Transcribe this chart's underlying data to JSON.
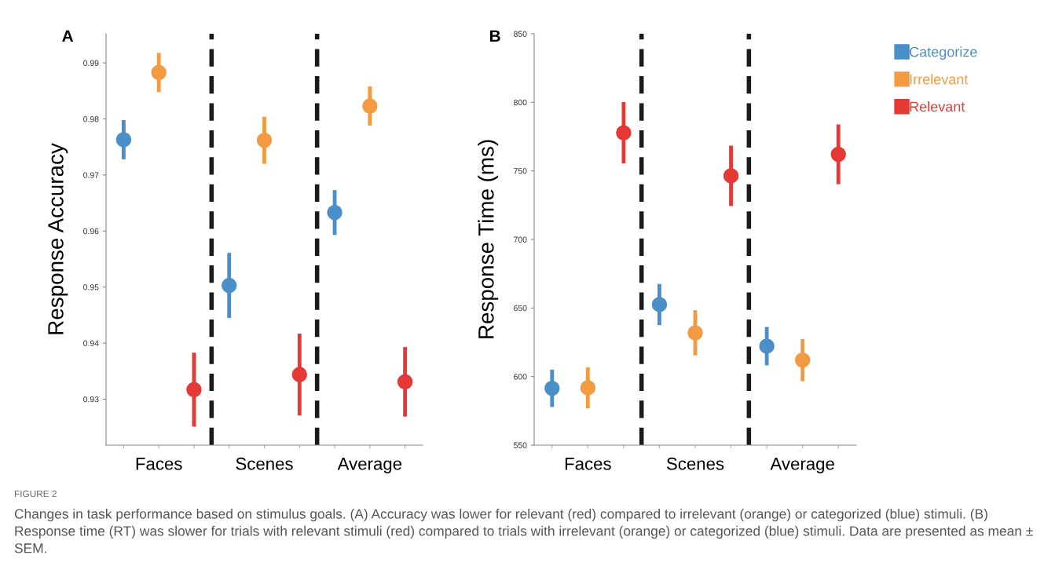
{
  "chart_data": [
    {
      "type": "scatter",
      "title": "A",
      "ylabel": "Response Accuracy",
      "categories": [
        null,
        "Faces",
        null,
        null,
        "Scenes",
        null,
        null,
        "Average",
        null
      ],
      "ylim": [
        0.9218,
        0.9952
      ],
      "yticks": [
        0.93,
        0.94,
        0.95,
        0.96,
        0.97,
        0.98,
        0.99
      ],
      "marker": "circle",
      "grid": false,
      "legend": false,
      "series": [
        {
          "color": "#4b8fc8",
          "values": [
            0.9763,
            null,
            null,
            0.9503,
            null,
            null,
            0.9633,
            null,
            null
          ],
          "errors": [
            0.0035,
            null,
            null,
            0.0058,
            null,
            null,
            0.004,
            null,
            null
          ]
        },
        {
          "color": "#f39a42",
          "values": [
            null,
            0.9883,
            null,
            null,
            0.9762,
            null,
            null,
            0.9823,
            null
          ],
          "errors": [
            null,
            0.0035,
            null,
            null,
            0.0042,
            null,
            null,
            0.0035,
            null
          ]
        },
        {
          "color": "#e53935",
          "values": [
            null,
            null,
            0.9317,
            null,
            null,
            0.9344,
            null,
            null,
            0.9331
          ],
          "errors": [
            null,
            null,
            0.0066,
            null,
            null,
            0.0073,
            null,
            null,
            0.0062
          ]
        }
      ],
      "annotations": [
        "FIGURE 2",
        "Changes in task performance based on stimulus goals. (A) Accuracy was lower for relevant (red) compared to irrelevant (orange) or categorized (blue) stimuli. (B) Response time (RT) was slower for trials with relevant stimuli (red) compared to trials with irrelevant (orange) or categorized (blue) stimuli. Data are presented as mean ± SEM."
      ]
    },
    {
      "type": "scatter",
      "title": "B",
      "ylabel": "Response Time (ms)",
      "categories": [
        null,
        "Faces",
        null,
        null,
        "Scenes",
        null,
        null,
        "Average",
        null
      ],
      "ylim": [
        550,
        850
      ],
      "yticks": [
        550,
        600,
        650,
        700,
        750,
        800,
        850
      ],
      "marker": "circle",
      "grid": false,
      "legend": "top right",
      "series": [
        {
          "name": "Categorize",
          "color": "#4b8fc8",
          "values": [
            591.4,
            null,
            null,
            652.5,
            null,
            null,
            622.2,
            null,
            null
          ],
          "errors": [
            13.6,
            null,
            null,
            15,
            null,
            null,
            14,
            null,
            null
          ]
        },
        {
          "name": "Irrelevant",
          "color": "#f39a42",
          "values": [
            null,
            591.8,
            null,
            null,
            631.9,
            null,
            null,
            612.0,
            null
          ],
          "errors": [
            null,
            15,
            null,
            null,
            16.5,
            null,
            null,
            15.4,
            null
          ]
        },
        {
          "name": "Relevant",
          "color": "#e53935",
          "values": [
            null,
            null,
            777.8,
            null,
            null,
            746.4,
            null,
            null,
            762.1
          ],
          "errors": [
            null,
            null,
            22.4,
            null,
            null,
            22,
            null,
            null,
            21.8
          ]
        }
      ]
    }
  ]
}
